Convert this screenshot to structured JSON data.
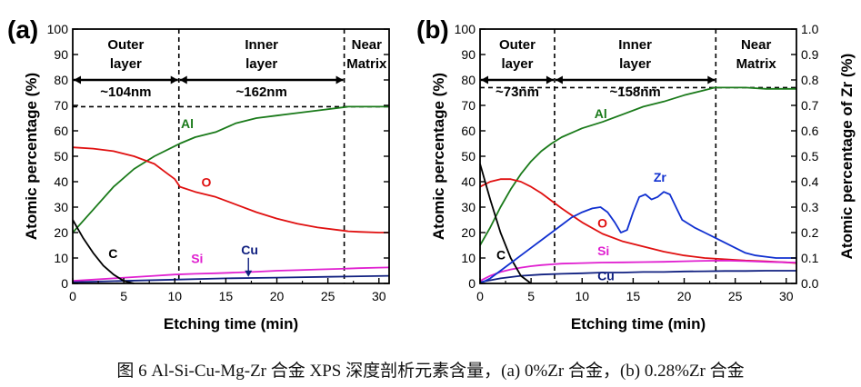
{
  "caption": "图 6 Al-Si-Cu-Mg-Zr 合金 XPS 深度剖析元素含量，(a) 0%Zr 合金，(b) 0.28%Zr 合金",
  "colors": {
    "Al": "#1a7a1a",
    "O": "#e01010",
    "Si": "#e020d0",
    "Cu": "#102080",
    "C": "#000000",
    "Zr": "#1030d0"
  },
  "chart_data": [
    {
      "type": "line",
      "panel_label": "(a)",
      "xlabel": "Etching time (min)",
      "ylabel": "Atomic percentage (%)",
      "xlim": [
        0,
        31
      ],
      "ylim": [
        0,
        100
      ],
      "xticks": [
        0,
        5,
        10,
        15,
        20,
        25,
        30
      ],
      "yticks": [
        0,
        10,
        20,
        30,
        40,
        50,
        60,
        70,
        80,
        90,
        100
      ],
      "regions": [
        {
          "name": "Outer layer",
          "lines": [
            "Outer",
            "layer"
          ],
          "span": [
            0,
            10.4
          ],
          "thickness": "~104nm"
        },
        {
          "name": "Inner layer",
          "lines": [
            "Inner",
            "layer"
          ],
          "span": [
            10.4,
            26.6
          ],
          "thickness": "~162nm"
        },
        {
          "name": "Near Matrix",
          "lines": [
            "Near",
            "Matrix"
          ],
          "span": [
            26.6,
            31
          ],
          "thickness": ""
        }
      ],
      "hline": 69.5,
      "series": [
        {
          "name": "Al",
          "color": "#1a7a1a",
          "label_at": [
            10.6,
            61
          ],
          "x": [
            0,
            2,
            4,
            6,
            8,
            10,
            10.5,
            12,
            14,
            16,
            18,
            20,
            22,
            24,
            26,
            27,
            28,
            30,
            31
          ],
          "y": [
            20,
            29,
            38,
            45,
            50,
            54,
            55,
            57.5,
            59.5,
            63,
            65,
            66,
            67,
            68,
            69,
            69.5,
            69.5,
            69.5,
            69.5
          ]
        },
        {
          "name": "O",
          "color": "#e01010",
          "label_at": [
            12.6,
            38
          ],
          "x": [
            0,
            2,
            4,
            6,
            8,
            9,
            10,
            10.5,
            12,
            14,
            16,
            18,
            20,
            22,
            24,
            26,
            27,
            28,
            30,
            31
          ],
          "y": [
            53.5,
            53,
            52,
            50,
            47,
            44,
            41,
            38,
            36,
            34,
            31,
            28,
            25.5,
            23.5,
            22,
            21,
            20.5,
            20.3,
            20,
            20
          ]
        },
        {
          "name": "Si",
          "color": "#e020d0",
          "label_at": [
            11.6,
            8
          ],
          "x": [
            0,
            2,
            4,
            6,
            8,
            10,
            12,
            14,
            16,
            18,
            20,
            22,
            24,
            26,
            28,
            30,
            31
          ],
          "y": [
            1,
            1.5,
            2,
            2.5,
            3,
            3.5,
            3.8,
            4,
            4.3,
            4.6,
            5,
            5.2,
            5.5,
            5.7,
            6,
            6.2,
            6.3
          ]
        },
        {
          "name": "Cu",
          "color": "#102080",
          "label_at": [
            16.5,
            11.5
          ],
          "x": [
            0,
            5,
            10,
            15,
            20,
            25,
            31
          ],
          "y": [
            0.5,
            1,
            1.5,
            2,
            2.3,
            2.6,
            3
          ]
        },
        {
          "name": "C",
          "color": "#000000",
          "label_at": [
            3.5,
            10
          ],
          "x": [
            0,
            1,
            2,
            3,
            4,
            5,
            6
          ],
          "y": [
            25,
            18,
            12,
            7,
            3.5,
            1,
            0
          ]
        }
      ]
    },
    {
      "type": "line",
      "panel_label": "(b)",
      "xlabel": "Etching time (min)",
      "ylabel": "Atomic percentage (%)",
      "y2label": "Atomic percentage of Zr (%)",
      "xlim": [
        0,
        31
      ],
      "ylim": [
        0,
        100
      ],
      "y2lim": [
        0,
        1
      ],
      "xticks": [
        0,
        5,
        10,
        15,
        20,
        25,
        30
      ],
      "yticks": [
        0,
        10,
        20,
        30,
        40,
        50,
        60,
        70,
        80,
        90,
        100
      ],
      "y2ticks": [
        "0.0",
        "0.1",
        "0.2",
        "0.3",
        "0.4",
        "0.5",
        "0.6",
        "0.7",
        "0.8",
        "0.9",
        "1.0"
      ],
      "regions": [
        {
          "name": "Outer layer",
          "lines": [
            "Outer",
            "layer"
          ],
          "span": [
            0,
            7.3
          ],
          "thickness": "~73nm"
        },
        {
          "name": "Inner layer",
          "lines": [
            "Inner",
            "layer"
          ],
          "span": [
            7.3,
            23.1
          ],
          "thickness": "~158nm"
        },
        {
          "name": "Near Matrix",
          "lines": [
            "Near",
            "Matrix"
          ],
          "span": [
            23.1,
            31
          ],
          "thickness": ""
        }
      ],
      "hline": 77,
      "series": [
        {
          "name": "Al",
          "color": "#1a7a1a",
          "label_at": [
            11.2,
            65
          ],
          "x": [
            0,
            1,
            2,
            3,
            4,
            5,
            6,
            7,
            8,
            10,
            12,
            14,
            16,
            18,
            20,
            22,
            23,
            24,
            26,
            28,
            30,
            31
          ],
          "y": [
            15,
            22,
            30,
            37,
            43,
            48,
            52,
            55,
            57.5,
            61,
            63.5,
            66.5,
            69.5,
            71.5,
            74,
            76,
            77,
            77,
            77,
            76.5,
            76.5,
            76.5
          ]
        },
        {
          "name": "O",
          "color": "#e01010",
          "label_at": [
            11.5,
            22
          ],
          "x": [
            0,
            1,
            2,
            3,
            4,
            5,
            6,
            7,
            8,
            10,
            12,
            14,
            16,
            18,
            20,
            22,
            24,
            26,
            28,
            30,
            31
          ],
          "y": [
            38,
            40,
            41,
            41,
            40,
            38,
            35.5,
            32.5,
            29.5,
            24,
            19.5,
            16.5,
            14.5,
            12.5,
            11,
            10,
            9.5,
            9,
            8.7,
            8.3,
            8
          ]
        },
        {
          "name": "Si",
          "color": "#e020d0",
          "label_at": [
            11.5,
            11
          ],
          "x": [
            0,
            1,
            2,
            3,
            4,
            5,
            6,
            7,
            8,
            10,
            12,
            14,
            16,
            18,
            20,
            22,
            24,
            26,
            28,
            30,
            31
          ],
          "y": [
            1,
            3,
            4.5,
            5.5,
            6.2,
            6.8,
            7.2,
            7.5,
            7.8,
            8,
            8.2,
            8.3,
            8.4,
            8.5,
            8.7,
            8.9,
            9,
            8.8,
            8.5,
            8.3,
            8.2
          ]
        },
        {
          "name": "Cu",
          "color": "#102080",
          "label_at": [
            11.5,
            1.2
          ],
          "x": [
            0,
            2,
            4,
            6,
            8,
            10,
            12,
            14,
            16,
            18,
            20,
            22,
            24,
            26,
            28,
            30,
            31
          ],
          "y": [
            0.5,
            2,
            3,
            3.5,
            3.8,
            4,
            4.3,
            4.3,
            4.5,
            4.5,
            4.7,
            4.8,
            4.9,
            4.9,
            5,
            5,
            5
          ]
        },
        {
          "name": "C",
          "color": "#000000",
          "label_at": [
            1.6,
            9.5
          ],
          "x": [
            0,
            1,
            2,
            3,
            4,
            5
          ],
          "y": [
            47,
            33,
            20,
            10,
            3,
            0
          ]
        },
        {
          "name": "Zr",
          "color": "#1030d0",
          "axis": "right",
          "label_at": [
            17,
            0.4
          ],
          "x": [
            0,
            1,
            2,
            3,
            4,
            5,
            6,
            7,
            8,
            9,
            10,
            11,
            11.8,
            12.5,
            13.2,
            13.8,
            14.4,
            15,
            15.6,
            16.2,
            16.8,
            17.4,
            18,
            18.6,
            19.2,
            19.8,
            21,
            22,
            23,
            24,
            25,
            26,
            27,
            28,
            29,
            30,
            31
          ],
          "y": [
            0,
            0.02,
            0.05,
            0.08,
            0.11,
            0.14,
            0.17,
            0.2,
            0.23,
            0.26,
            0.28,
            0.295,
            0.3,
            0.28,
            0.24,
            0.2,
            0.21,
            0.28,
            0.34,
            0.35,
            0.33,
            0.34,
            0.36,
            0.35,
            0.3,
            0.25,
            0.22,
            0.2,
            0.18,
            0.16,
            0.14,
            0.12,
            0.11,
            0.105,
            0.1,
            0.1,
            0.1
          ]
        }
      ]
    }
  ]
}
